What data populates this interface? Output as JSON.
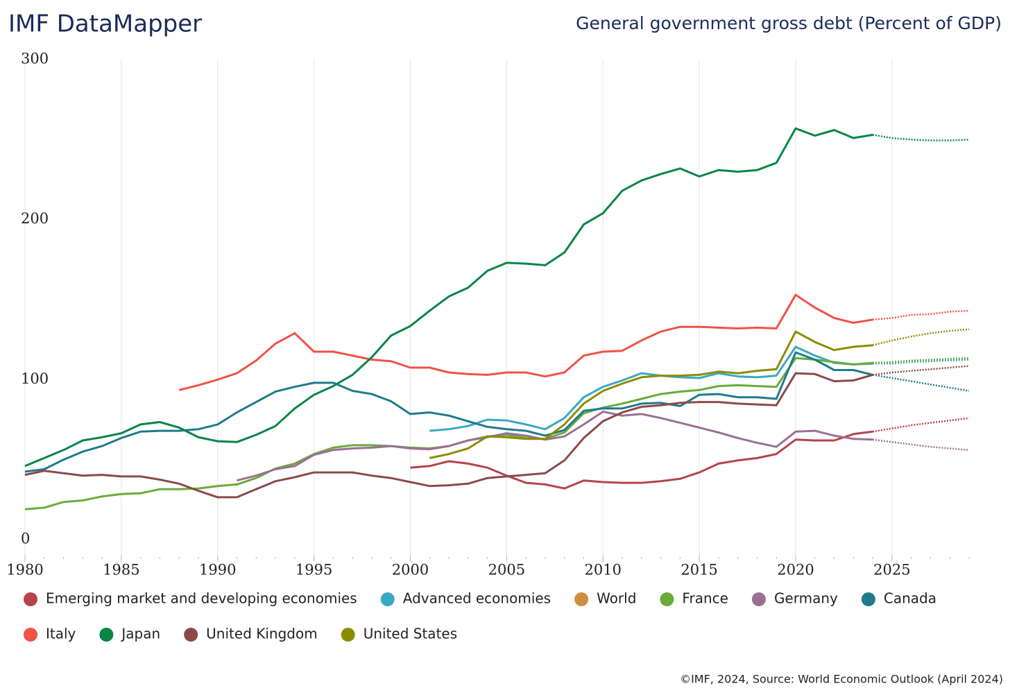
{
  "title": "IMF DataMapper",
  "footer": "©IMF, 2024, Source: World Economic Outlook (April 2024)",
  "chart_data": {
    "type": "line",
    "title": "General government gross debt (Percent of GDP)",
    "x": [
      1980,
      1981,
      1982,
      1983,
      1984,
      1985,
      1986,
      1987,
      1988,
      1989,
      1990,
      1991,
      1992,
      1993,
      1994,
      1995,
      1996,
      1997,
      1998,
      1999,
      2000,
      2001,
      2002,
      2003,
      2004,
      2005,
      2006,
      2007,
      2008,
      2009,
      2010,
      2011,
      2012,
      2013,
      2014,
      2015,
      2016,
      2017,
      2018,
      2019,
      2020,
      2021,
      2022,
      2023,
      2024,
      2025,
      2026,
      2027,
      2028,
      2029
    ],
    "xlim": [
      1980,
      2029
    ],
    "xticks": [
      1980,
      1985,
      1990,
      1995,
      2000,
      2005,
      2010,
      2015,
      2020,
      2025
    ],
    "ylim": [
      0,
      300
    ],
    "yticks": [
      0,
      100,
      200,
      300
    ],
    "grid": "x",
    "legend": "bottom",
    "projection_from": 2024,
    "series": [
      {
        "name": "Emerging market and developing economies",
        "color": "#b5434a",
        "values": [
          null,
          null,
          null,
          null,
          null,
          null,
          null,
          null,
          null,
          null,
          null,
          null,
          null,
          null,
          null,
          null,
          null,
          null,
          null,
          null,
          45,
          46,
          49,
          47.5,
          45,
          40,
          35.5,
          34.5,
          32,
          37,
          36,
          35.5,
          35.5,
          36.5,
          38,
          42,
          47.5,
          49.5,
          51,
          53.5,
          62.5,
          62,
          62,
          66,
          67.5,
          69.5,
          71.5,
          73,
          74.5,
          76
        ]
      },
      {
        "name": "Advanced economies",
        "color": "#3aa8c1",
        "values": [
          null,
          null,
          null,
          null,
          null,
          null,
          null,
          null,
          null,
          null,
          null,
          null,
          null,
          null,
          null,
          null,
          null,
          null,
          null,
          null,
          null,
          68,
          69,
          71,
          75,
          74.5,
          72,
          69,
          76,
          89,
          95.5,
          99.5,
          104,
          102.5,
          101.5,
          101,
          104,
          102,
          101.5,
          102.5,
          120.5,
          115,
          110.5,
          109.5,
          110,
          110,
          111,
          111.5,
          112,
          112.5
        ]
      },
      {
        "name": "World",
        "color": "#d18e3e",
        "values": [
          null,
          null,
          null,
          null,
          null,
          null,
          null,
          null,
          null,
          null,
          null,
          null,
          null,
          null,
          null,
          null,
          null,
          null,
          null,
          null,
          null,
          null,
          null,
          null,
          null,
          null,
          null,
          null,
          null,
          null,
          null,
          null,
          null,
          null,
          null,
          null,
          null,
          null,
          null,
          null,
          null,
          null,
          null,
          null,
          null,
          null,
          null,
          null,
          null,
          null
        ]
      },
      {
        "name": "France",
        "color": "#6aab3a",
        "values": [
          19,
          20,
          23.5,
          24.5,
          27,
          28.5,
          29,
          31.5,
          31.5,
          32,
          33.5,
          34.5,
          38.5,
          44.5,
          47.5,
          53.5,
          57.5,
          59,
          59,
          58.5,
          57.5,
          57,
          58.5,
          62,
          64.5,
          65.5,
          63.5,
          63,
          67,
          79,
          82.5,
          85,
          88,
          91,
          92.5,
          93.5,
          96,
          96.5,
          96,
          95.5,
          113.5,
          112.5,
          111,
          109.5,
          110.5,
          111,
          112,
          112.5,
          113,
          113.5
        ]
      },
      {
        "name": "Germany",
        "color": "#9c6f95",
        "values": [
          null,
          null,
          null,
          null,
          null,
          null,
          null,
          null,
          null,
          null,
          null,
          37,
          40,
          44,
          46,
          53,
          56,
          57,
          57.5,
          58.5,
          57,
          56.5,
          58.5,
          62,
          64,
          66.5,
          65,
          62.5,
          64.5,
          72,
          80,
          77.5,
          78.5,
          76,
          73,
          70,
          67,
          63.5,
          60.5,
          58,
          67.5,
          68,
          65,
          63,
          62.5,
          61,
          59.5,
          58,
          57,
          56
        ]
      },
      {
        "name": "Canada",
        "color": "#1f7a8c",
        "values": [
          42.5,
          44,
          50,
          55,
          58.5,
          63.5,
          67.5,
          68,
          68,
          69,
          72,
          79.5,
          86,
          92.5,
          95.5,
          98,
          98,
          93,
          91,
          86.5,
          78.5,
          79.5,
          77.5,
          74,
          70.5,
          69,
          68,
          65,
          68.5,
          80.5,
          82,
          82,
          85,
          85.5,
          83.5,
          90.5,
          91,
          89,
          89,
          88,
          117,
          112.5,
          106,
          106,
          103,
          101,
          99,
          97,
          95,
          93
        ]
      },
      {
        "name": "Italy",
        "color": "#ef5348",
        "values": [
          null,
          null,
          null,
          null,
          null,
          null,
          null,
          null,
          93.5,
          96.5,
          100,
          104,
          112,
          122.5,
          129,
          117.5,
          117.5,
          115,
          112.5,
          111.5,
          107.5,
          107.5,
          104.5,
          103.5,
          103,
          104.5,
          104.5,
          102,
          104.5,
          115,
          117.5,
          118,
          124.5,
          130,
          133,
          133,
          132.5,
          132,
          132.5,
          132,
          153,
          145,
          138.5,
          135.5,
          137.5,
          138.5,
          140.5,
          141,
          142.5,
          143
        ]
      },
      {
        "name": "Japan",
        "color": "#0a8548",
        "values": [
          46,
          51,
          56,
          62,
          64,
          66.5,
          72,
          73.5,
          70,
          64,
          61.5,
          61,
          65.5,
          71,
          82,
          90.5,
          96,
          103,
          114,
          127.5,
          133.5,
          143,
          152,
          157.5,
          168,
          173,
          172.5,
          171.5,
          179.5,
          197,
          204,
          218,
          224.5,
          228.5,
          232,
          227,
          231,
          230,
          231,
          235.5,
          257,
          252.5,
          256,
          251,
          253,
          251,
          250,
          249.5,
          249.5,
          250
        ]
      },
      {
        "name": "United Kingdom",
        "color": "#8b4a4a",
        "values": [
          40.5,
          43,
          41.5,
          40,
          40.5,
          39.5,
          39.5,
          37.5,
          35,
          30.5,
          26.5,
          26.5,
          31.5,
          36.5,
          39,
          42,
          42,
          42,
          40,
          38.5,
          36,
          33.5,
          34,
          35,
          38.5,
          39.5,
          40.5,
          41.5,
          49.5,
          63.5,
          74,
          79.5,
          83,
          84,
          85.5,
          86,
          86,
          85,
          84.5,
          84,
          104,
          103.5,
          99,
          99.5,
          103,
          104.5,
          105.5,
          106.5,
          107.5,
          108.5
        ]
      },
      {
        "name": "United States",
        "color": "#8c8c00",
        "values": [
          null,
          null,
          null,
          null,
          null,
          null,
          null,
          null,
          null,
          null,
          null,
          null,
          null,
          null,
          null,
          null,
          null,
          null,
          null,
          null,
          null,
          51,
          53.5,
          57,
          64.5,
          64,
          63,
          63,
          72,
          85,
          93,
          97.5,
          101.5,
          102.5,
          102.5,
          103,
          105,
          104,
          105.5,
          106.5,
          130,
          123.5,
          118.5,
          120.5,
          121.5,
          124.5,
          127,
          129,
          130.5,
          131.5
        ]
      }
    ]
  }
}
